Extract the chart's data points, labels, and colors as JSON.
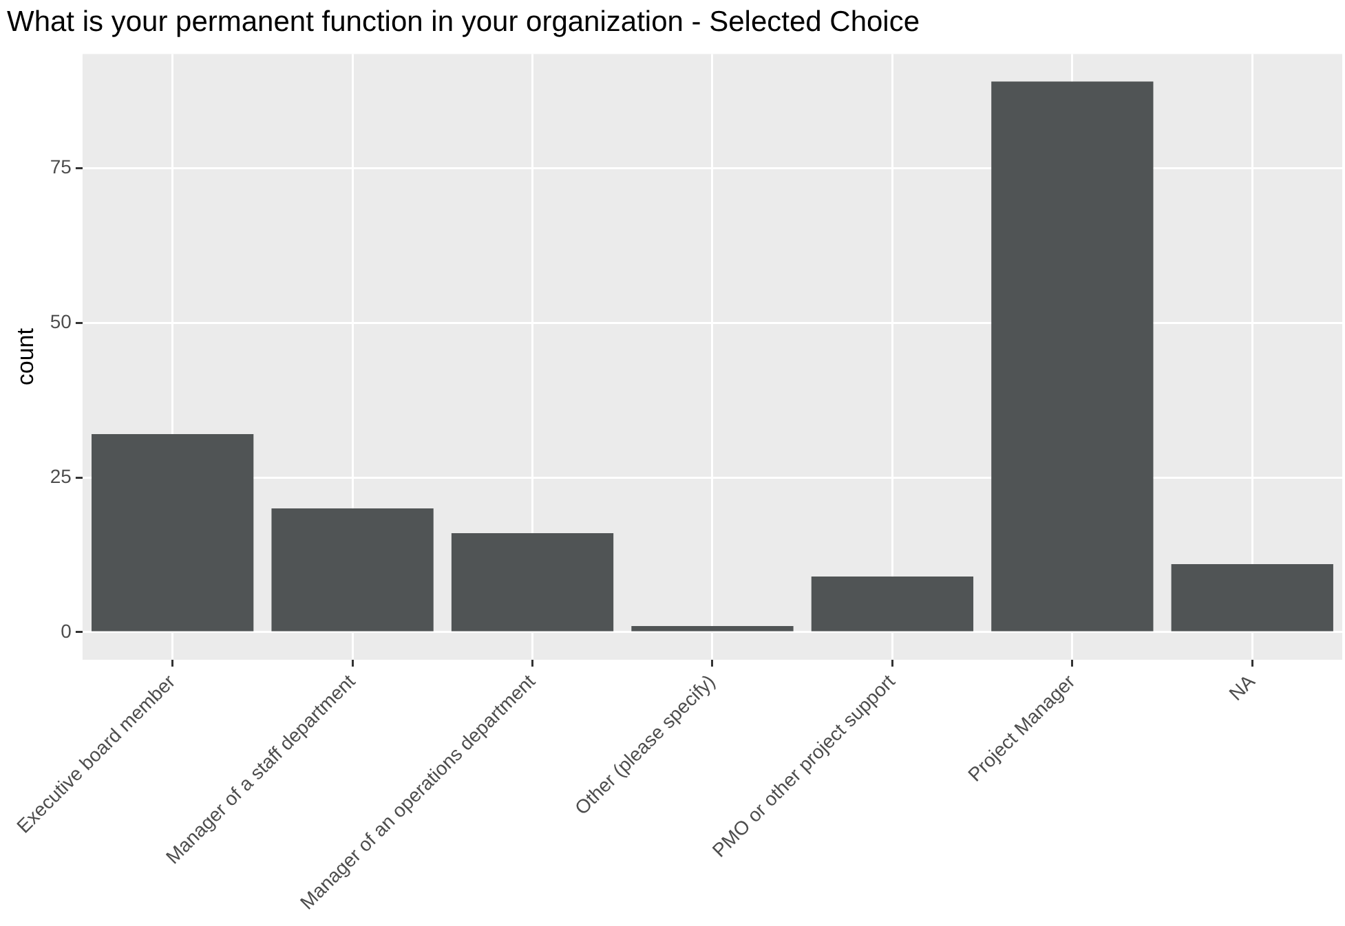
{
  "chart_data": {
    "type": "bar",
    "title": "What is your permanent function in your organization - Selected Choice",
    "ylabel": "count",
    "categories": [
      "Executive board member",
      "Manager of a staff department",
      "Manager of an operations department",
      "Other (please specify)",
      "PMO or other project support",
      "Project Manager",
      "NA"
    ],
    "values": [
      32,
      20,
      16,
      1,
      9,
      89,
      11
    ],
    "color": "#505455",
    "ylim": [
      -4.45,
      93.45
    ],
    "yticks": [
      0,
      25,
      50,
      75
    ],
    "grid": true,
    "legend": false
  }
}
